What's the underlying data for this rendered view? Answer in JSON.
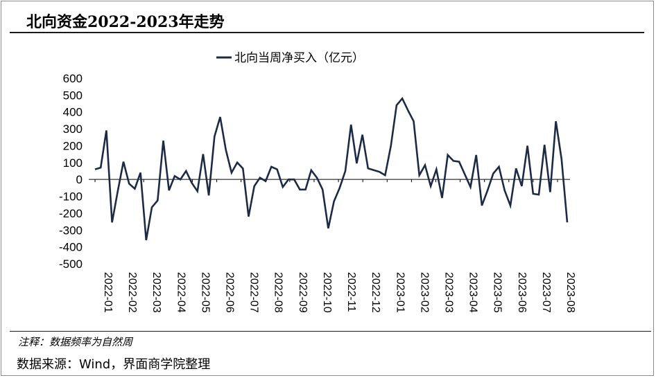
{
  "header": {
    "title": "北向资金2022-2023年走势"
  },
  "footer": {
    "note": "注释：数据频率为自然周",
    "source": "数据来源：Wind，界面商学院整理"
  },
  "colors": {
    "line": "#1c2a45",
    "axis": "#000000"
  },
  "chart_data": {
    "type": "line",
    "title": "北向资金2022-2023年走势",
    "legend_position": "top-center",
    "grid": false,
    "ylim": [
      -500,
      600
    ],
    "yticks": [
      600,
      500,
      400,
      300,
      200,
      100,
      0,
      -100,
      -200,
      -300,
      -400,
      -500
    ],
    "xticks": [
      "2022-01",
      "2022-02",
      "2022-03",
      "2022-04",
      "2022-05",
      "2022-06",
      "2022-07",
      "2022-08",
      "2022-09",
      "2022-10",
      "2022-11",
      "2022-12",
      "2023-01",
      "2023-02",
      "2023-03",
      "2023-04",
      "2023-05",
      "2023-06",
      "2023-07",
      "2023-08"
    ],
    "series": [
      {
        "name": "北向当周净买入（亿元）",
        "values": [
          60,
          70,
          290,
          -255,
          -70,
          105,
          -25,
          -55,
          40,
          -360,
          -165,
          -125,
          230,
          -65,
          20,
          0,
          50,
          -20,
          -70,
          150,
          -95,
          255,
          370,
          175,
          40,
          100,
          65,
          -220,
          -40,
          10,
          -10,
          75,
          60,
          -45,
          0,
          0,
          -60,
          -60,
          55,
          10,
          -60,
          -290,
          -130,
          -50,
          50,
          325,
          95,
          265,
          65,
          55,
          45,
          25,
          200,
          440,
          480,
          410,
          345,
          25,
          85,
          -40,
          60,
          -110,
          145,
          110,
          105,
          30,
          -45,
          145,
          -155,
          -65,
          35,
          75,
          -65,
          -155,
          65,
          -40,
          200,
          -85,
          -90,
          205,
          -75,
          345,
          120,
          -255
        ]
      }
    ]
  }
}
